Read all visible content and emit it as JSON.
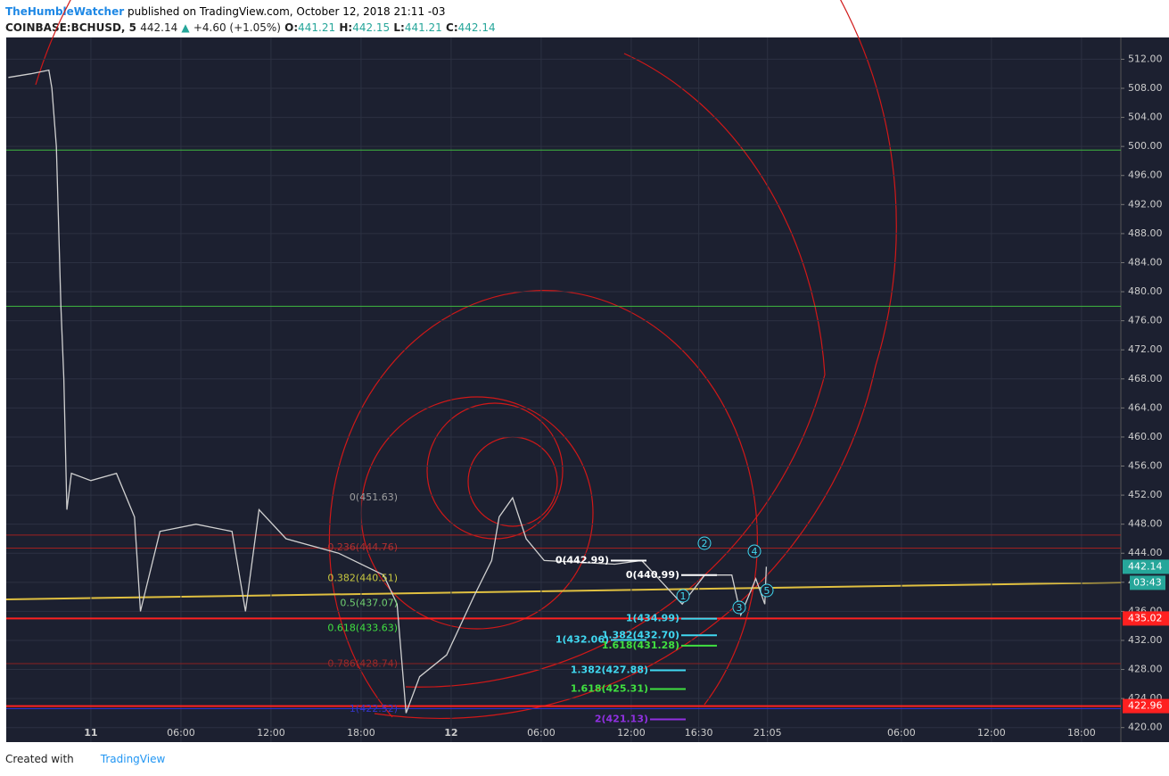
{
  "header": {
    "author": "TheHumbleWatcher",
    "published": "published on TradingView.com, October 12, 2018 21:11 -03"
  },
  "symbol": {
    "name": "COINBASE:BCHUSD, 5",
    "last": "442.14",
    "change": "+4.60 (+1.05%)",
    "o_label": "O:",
    "o": "441.21",
    "h_label": "H:",
    "h": "442.15",
    "l_label": "L:",
    "l": "441.21",
    "c_label": "C:",
    "c": "442.14"
  },
  "footer": {
    "created": "Created with",
    "brand": "TradingView"
  },
  "chart_data": {
    "type": "line",
    "color": "#d0d0d0",
    "x": [
      -5.5,
      -4,
      -2.8,
      -2.6,
      -2.3,
      -2,
      -1.8,
      -1.6,
      -1.3,
      0,
      1.7,
      2.9,
      3.3,
      4.6,
      7,
      9.4,
      10.3,
      11.2,
      13,
      16.5,
      19.5,
      20.4,
      21,
      21.9,
      23.7,
      25.5,
      26.7,
      27.2,
      28.1,
      29,
      30.2,
      34.9,
      36.7,
      39.4,
      40.9,
      42.7,
      43.3,
      44.3,
      44.9,
      45
    ],
    "values": [
      509.5,
      510,
      510.5,
      508,
      500,
      478,
      468,
      450,
      455,
      454,
      455,
      449,
      436,
      447,
      448,
      447,
      436,
      450,
      446,
      444,
      441,
      437,
      422,
      427,
      430,
      438,
      443,
      449,
      451.63,
      446,
      443,
      442.5,
      443,
      437,
      441,
      441,
      435.5,
      440.5,
      437,
      442.14
    ],
    "xlim": [
      -5.64,
      68.62
    ],
    "xticks": [
      {
        "value": 0,
        "label": "11"
      },
      {
        "value": 6,
        "label": "06:00"
      },
      {
        "value": 12,
        "label": "12:00"
      },
      {
        "value": 18,
        "label": "18:00"
      },
      {
        "value": 24,
        "label": "12"
      },
      {
        "value": 30,
        "label": "06:00"
      },
      {
        "value": 36,
        "label": "12:00"
      },
      {
        "value": 40.5,
        "label": "16:30"
      },
      {
        "value": 45.08,
        "label": "21:05"
      },
      {
        "value": 54,
        "label": "06:00"
      },
      {
        "value": 60,
        "label": "12:00"
      },
      {
        "value": 66,
        "label": "18:00"
      }
    ],
    "ylim": [
      418,
      515
    ],
    "yticks": [
      {
        "value": 420,
        "label": "420.00"
      },
      {
        "value": 424,
        "label": "424.00"
      },
      {
        "value": 428,
        "label": "428.00"
      },
      {
        "value": 432,
        "label": "432.00"
      },
      {
        "value": 436,
        "label": "436.00"
      },
      {
        "value": 440,
        "label": "440.00"
      },
      {
        "value": 444,
        "label": "444.00"
      },
      {
        "value": 448,
        "label": "448.00"
      },
      {
        "value": 452,
        "label": "452.00"
      },
      {
        "value": 456,
        "label": "456.00"
      },
      {
        "value": 460,
        "label": "460.00"
      },
      {
        "value": 464,
        "label": "464.00"
      },
      {
        "value": 468,
        "label": "468.00"
      },
      {
        "value": 472,
        "label": "472.00"
      },
      {
        "value": 476,
        "label": "476.00"
      },
      {
        "value": 480,
        "label": "480.00"
      },
      {
        "value": 484,
        "label": "484.00"
      },
      {
        "value": 488,
        "label": "488.00"
      },
      {
        "value": 492,
        "label": "492.00"
      },
      {
        "value": 496,
        "label": "496.00"
      },
      {
        "value": 500,
        "label": "500.00"
      },
      {
        "value": 504,
        "label": "504.00"
      },
      {
        "value": 508,
        "label": "508.00"
      },
      {
        "value": 512,
        "label": "512.00"
      }
    ],
    "grid": true,
    "hlines": [
      {
        "value": 499.5,
        "color": "#3fb83f"
      },
      {
        "value": 478,
        "color": "#3fb83f"
      },
      {
        "value": 446.5,
        "color": "#a02020"
      },
      {
        "value": 444.7,
        "color": "#a02020"
      },
      {
        "value": 428.8,
        "color": "#8a1f1f"
      },
      {
        "value": 435.02,
        "color": "#ff2020"
      },
      {
        "value": 422.96,
        "color": "#ff2020"
      },
      {
        "value": 422.6,
        "color": "#3030d0"
      }
    ],
    "annotations": [
      {
        "label": "0(451.63)",
        "value": 451.63,
        "color": "#9e9e9e"
      },
      {
        "label": "0.236(444.76)",
        "value": 444.76,
        "color": "#b03030"
      },
      {
        "label": "0.382(440.51)",
        "value": 440.51,
        "color": "#c8c840"
      },
      {
        "label": "0.5(437.07)",
        "value": 437.07,
        "color": "#70d070"
      },
      {
        "label": "0.618(433.63)",
        "value": 433.63,
        "color": "#40e040"
      },
      {
        "label": "0.786(428.74)",
        "value": 428.74,
        "color": "#9b2a2a"
      },
      {
        "label": "1(422.52)",
        "value": 422.52,
        "color": "#3535c8"
      },
      {
        "label": "0(442.99)",
        "value": 442.99,
        "color": "#ffffff"
      },
      {
        "label": "0(440.99)",
        "value": 440.99,
        "color": "#ffffff"
      },
      {
        "label": "1(434.99)",
        "value": 434.99,
        "color": "#40d8f0"
      },
      {
        "label": "1(432.06)",
        "value": 432.06,
        "color": "#40d8f0"
      },
      {
        "label": "1.382(432.70)",
        "value": 432.7,
        "color": "#40d8f0"
      },
      {
        "label": "1.618(431.28)",
        "value": 431.28,
        "color": "#40e040"
      },
      {
        "label": "1.382(427.88)",
        "value": 427.88,
        "color": "#40d8f0"
      },
      {
        "label": "1.618(425.31)",
        "value": 425.31,
        "color": "#40e040"
      },
      {
        "label": "2(421.13)",
        "value": 421.13,
        "color": "#9030e0"
      }
    ],
    "waves": [
      "1",
      "2",
      "3",
      "4",
      "5"
    ],
    "price_labels": [
      {
        "label": "442.14",
        "value": 442.14,
        "color": "#26a69a"
      },
      {
        "label": "435.02",
        "value": 435.02,
        "color": "#ff2020"
      },
      {
        "label": "422.96",
        "value": 422.96,
        "color": "#ff2020"
      }
    ],
    "countdown": "03:43"
  }
}
